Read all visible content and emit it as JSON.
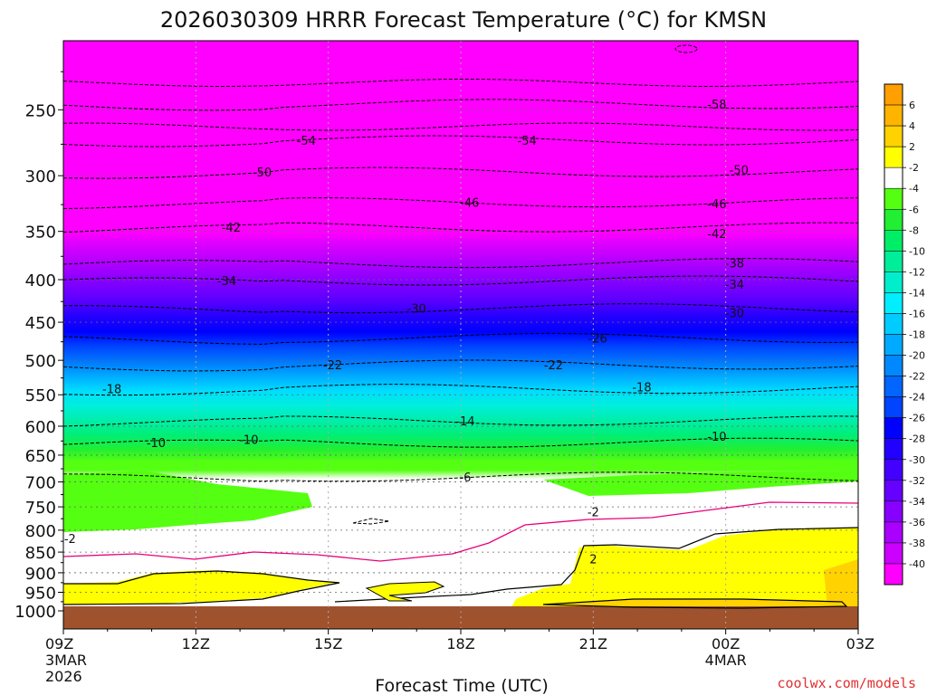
{
  "chart_data": {
    "type": "heatmap",
    "title": "2026030309 HRRR Forecast Temperature (°C) for KMSN",
    "xlabel": "Forecast Time (UTC)",
    "ylabel": "",
    "credit": "coolwx.com/models",
    "x_ticks": [
      {
        "hour": 0,
        "label": "09Z",
        "sub1": "3MAR",
        "sub2": "2026"
      },
      {
        "hour": 3,
        "label": "12Z",
        "sub1": "",
        "sub2": ""
      },
      {
        "hour": 6,
        "label": "15Z",
        "sub1": "",
        "sub2": ""
      },
      {
        "hour": 9,
        "label": "18Z",
        "sub1": "",
        "sub2": ""
      },
      {
        "hour": 12,
        "label": "21Z",
        "sub1": "",
        "sub2": ""
      },
      {
        "hour": 15,
        "label": "00Z",
        "sub1": "4MAR",
        "sub2": ""
      },
      {
        "hour": 18,
        "label": "03Z",
        "sub1": "",
        "sub2": ""
      }
    ],
    "xlim": [
      0,
      18
    ],
    "y_ticks": [
      250,
      300,
      350,
      400,
      450,
      500,
      550,
      600,
      650,
      700,
      750,
      800,
      850,
      900,
      950,
      1000
    ],
    "ylim_hpa": [
      200,
      1030
    ],
    "surface_hpa": 984,
    "colorbar": {
      "levels": [
        6,
        4,
        2,
        -2,
        -4,
        -6,
        -8,
        -10,
        -12,
        -14,
        -16,
        -18,
        -20,
        -22,
        -24,
        -26,
        -28,
        -30,
        -32,
        -34,
        -36,
        -38,
        -40
      ],
      "colors": [
        "#ffb400",
        "#ffd200",
        "#ffff00",
        "#ffffff",
        "#55ff11",
        "#22ee33",
        "#00ee66",
        "#00ee99",
        "#00eecc",
        "#00eeff",
        "#00ccff",
        "#00aaff",
        "#0088ff",
        "#0066ff",
        "#0044ff",
        "#0000ff",
        "#2200ff",
        "#4400ff",
        "#6600ff",
        "#8800ff",
        "#aa00ff",
        "#cc00ff",
        "#ff00ff"
      ]
    },
    "contour_labels": [
      {
        "text": "-58",
        "hour": 14.8,
        "p": 246
      },
      {
        "text": "-54",
        "hour": 5.5,
        "p": 272
      },
      {
        "text": "-54",
        "hour": 10.5,
        "p": 272
      },
      {
        "text": "-50",
        "hour": 4.5,
        "p": 297
      },
      {
        "text": "-50",
        "hour": 15.3,
        "p": 295
      },
      {
        "text": "-46",
        "hour": 9.2,
        "p": 323
      },
      {
        "text": "-46",
        "hour": 14.8,
        "p": 324
      },
      {
        "text": "-42",
        "hour": 3.8,
        "p": 346
      },
      {
        "text": "-42",
        "hour": 14.8,
        "p": 352
      },
      {
        "text": "-38",
        "hour": 15.2,
        "p": 382
      },
      {
        "text": "-34",
        "hour": 3.7,
        "p": 401
      },
      {
        "text": "-34",
        "hour": 15.2,
        "p": 405
      },
      {
        "text": "-30",
        "hour": 8.0,
        "p": 433
      },
      {
        "text": "-30",
        "hour": 15.2,
        "p": 438
      },
      {
        "text": "-26",
        "hour": 12.1,
        "p": 470
      },
      {
        "text": "-22",
        "hour": 6.1,
        "p": 506
      },
      {
        "text": "-22",
        "hour": 11.1,
        "p": 506
      },
      {
        "text": "-18",
        "hour": 1.1,
        "p": 541
      },
      {
        "text": "-18",
        "hour": 13.1,
        "p": 538
      },
      {
        "text": "-14",
        "hour": 9.1,
        "p": 591
      },
      {
        "text": "-10",
        "hour": 2.1,
        "p": 628
      },
      {
        "text": "-10",
        "hour": 4.2,
        "p": 622
      },
      {
        "text": "-10",
        "hour": 14.8,
        "p": 617
      },
      {
        "text": "-6",
        "hour": 9.1,
        "p": 690
      },
      {
        "text": "-2",
        "hour": 12.0,
        "p": 760
      },
      {
        "text": "-2",
        "hour": 0.15,
        "p": 819
      },
      {
        "text": "2",
        "hour": 12.0,
        "p": 866
      }
    ]
  }
}
